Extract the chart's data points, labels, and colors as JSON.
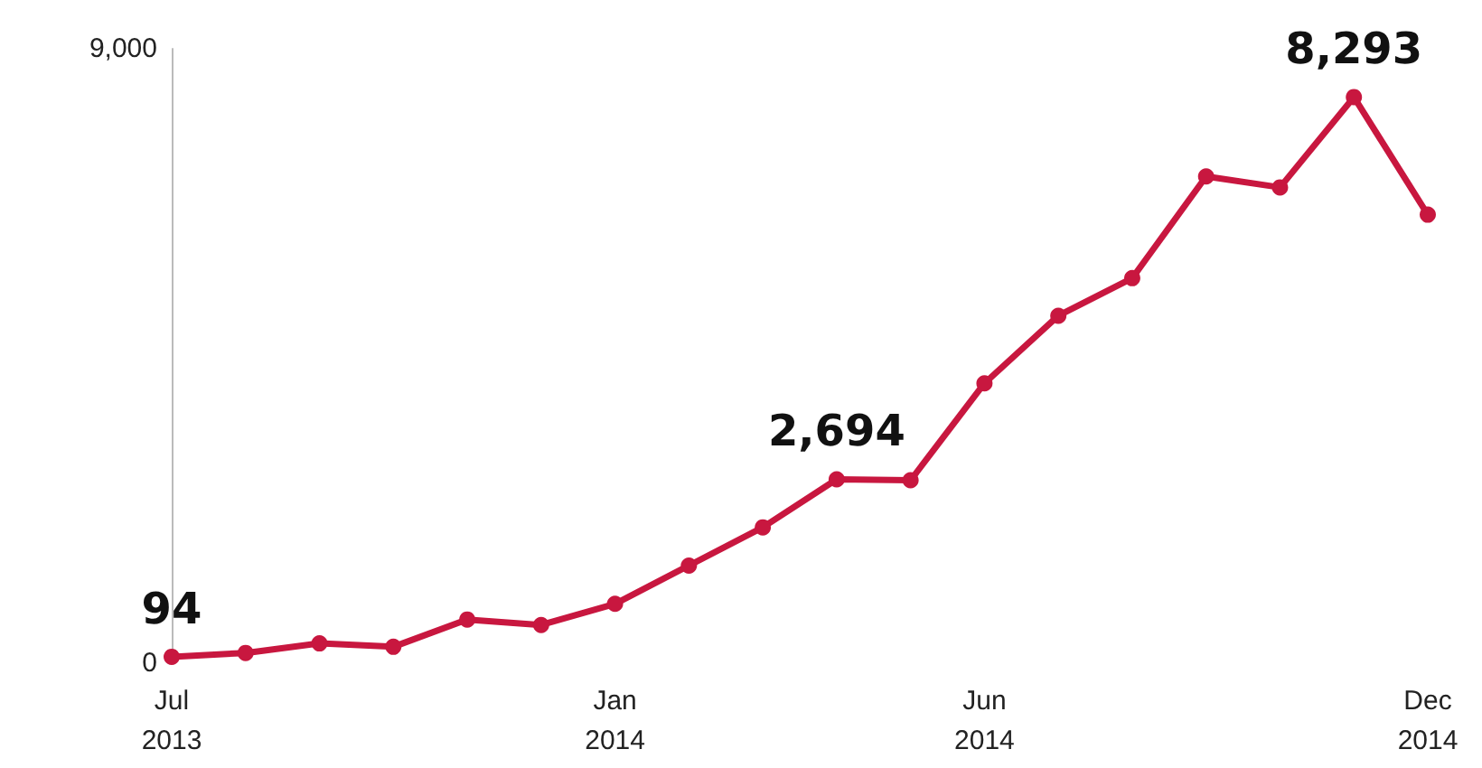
{
  "chart_data": {
    "type": "line",
    "categories": [
      "Jul\n2013",
      null,
      null,
      null,
      null,
      null,
      "Jan\n2014",
      null,
      null,
      null,
      null,
      "Jun\n2014",
      null,
      null,
      null,
      null,
      null,
      "Dec\n2014"
    ],
    "series": [
      {
        "color": "#c8173f",
        "values": [
          94,
          150,
          290,
          240,
          640,
          560,
          870,
          1430,
          1990,
          2694,
          2680,
          4100,
          5090,
          5640,
          7130,
          6970,
          8293,
          6570
        ],
        "value_labels": [
          "94",
          null,
          null,
          null,
          null,
          null,
          null,
          null,
          null,
          "2,694",
          null,
          null,
          null,
          null,
          null,
          null,
          "8,293",
          null
        ]
      }
    ],
    "ylim": [
      0,
      9000
    ],
    "yticks": [
      0,
      {
        "value": 9000,
        "label": "9,000"
      }
    ],
    "grid": false,
    "marker": "circle",
    "line_style": "solid"
  }
}
